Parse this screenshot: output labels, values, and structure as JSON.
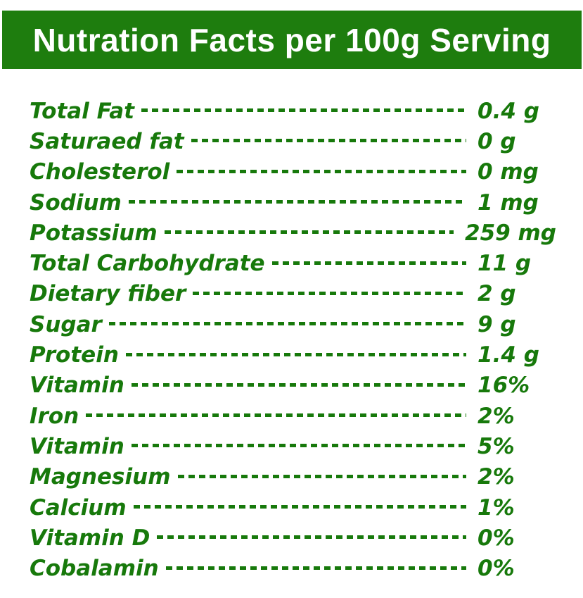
{
  "header": {
    "title": "Nutration Facts per 100g Serving"
  },
  "table": {
    "leader_style": "dashed-hyphens",
    "rows": [
      {
        "label": "Total Fat",
        "value": "0.4 g"
      },
      {
        "label": "Saturaed fat",
        "value": "0 g"
      },
      {
        "label": "Cholesterol",
        "value": "0 mg"
      },
      {
        "label": "Sodium",
        "value": "1 mg"
      },
      {
        "label": "Potassium",
        "value": "259 mg"
      },
      {
        "label": "Total Carbohydrate",
        "value": "11 g"
      },
      {
        "label": "Dietary fiber",
        "value": "2 g"
      },
      {
        "label": "Sugar",
        "value": "9 g"
      },
      {
        "label": "Protein",
        "value": "1.4 g"
      },
      {
        "label": "Vitamin",
        "value": "16%"
      },
      {
        "label": "Iron",
        "value": "2%"
      },
      {
        "label": "Vitamin",
        "value": "5%"
      },
      {
        "label": "Magnesium",
        "value": "2%"
      },
      {
        "label": "Calcium",
        "value": "1%"
      },
      {
        "label": "Vitamin D",
        "value": "0%"
      },
      {
        "label": "Cobalamin",
        "value": "0%"
      }
    ]
  },
  "colors": {
    "header_bg": "#1e7d0e",
    "header_text": "#ffffff",
    "text_green": "#17790b",
    "page_bg": "#ffffff"
  }
}
